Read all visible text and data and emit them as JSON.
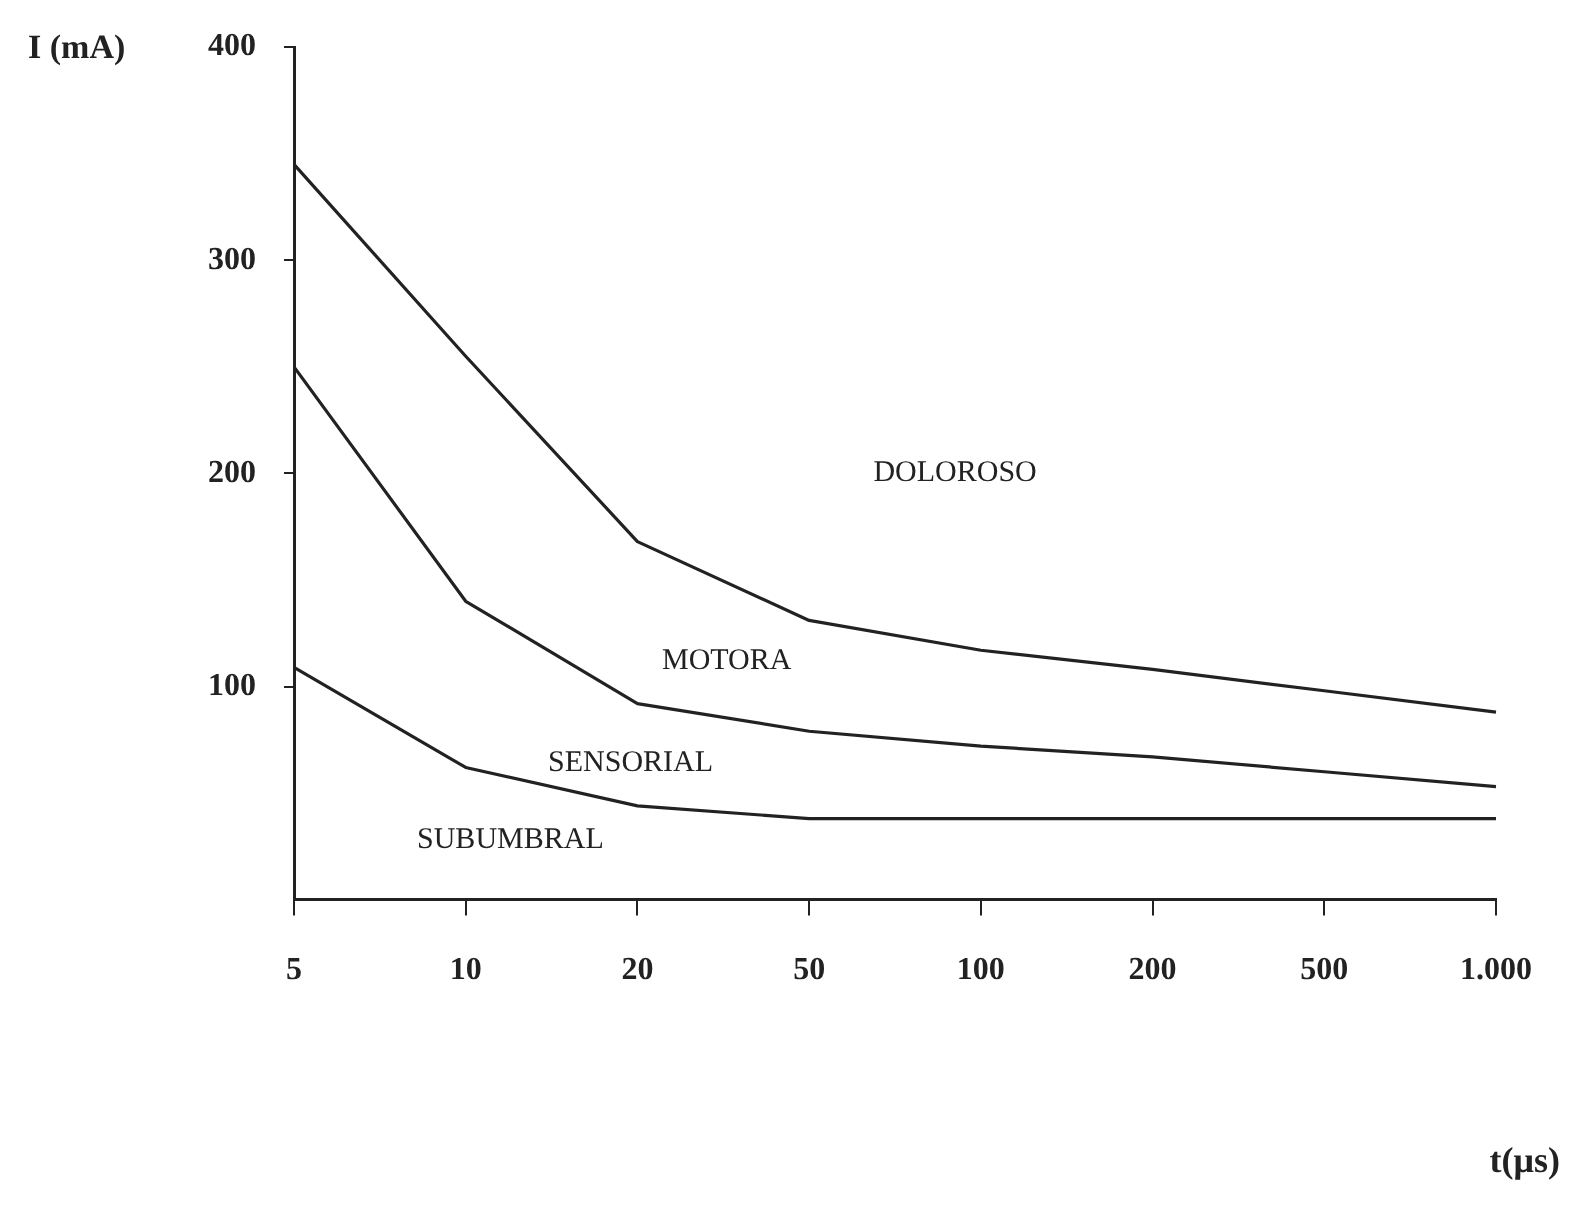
{
  "chart_data": {
    "type": "line",
    "xlabel": "t(μs)",
    "ylabel": "I (mA)",
    "categories": [
      "5",
      "10",
      "20",
      "50",
      "100",
      "200",
      "500",
      "1.000"
    ],
    "ylim": [
      0,
      400
    ],
    "yticks": [
      100,
      200,
      300,
      400
    ],
    "grid": false,
    "legend": false,
    "marker": "none",
    "line_style": "solid",
    "series": [
      {
        "color": "#222222",
        "values": [
          345,
          255,
          168,
          131,
          117,
          108,
          98,
          88
        ]
      },
      {
        "color": "#222222",
        "values": [
          250,
          140,
          92,
          79,
          72,
          67,
          60,
          53
        ]
      },
      {
        "color": "#222222",
        "values": [
          109,
          62,
          44,
          38,
          38,
          38,
          38,
          38
        ]
      }
    ],
    "annotations": [
      "DOLOROSO",
      "MOTORA",
      "SENSORIAL",
      "SUBUMBRAL"
    ]
  }
}
